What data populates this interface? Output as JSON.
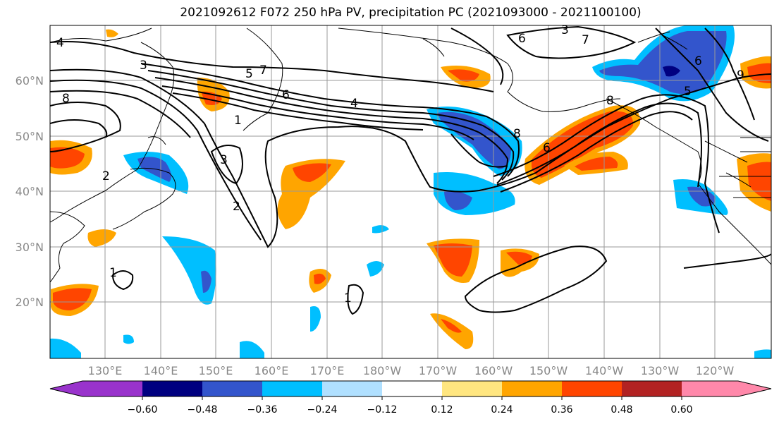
{
  "title": "2021092612 F072 250 hPa PV, precipitation PC (2021093000 - 2021100100)",
  "map": {
    "lat_labels": [
      "60°N",
      "50°N",
      "40°N",
      "30°N",
      "20°N"
    ],
    "lon_labels": [
      "130°E",
      "140°E",
      "150°E",
      "160°E",
      "170°E",
      "180°W",
      "170°W",
      "160°W",
      "150°W",
      "140°W",
      "130°W",
      "120°W"
    ],
    "contour_labels": [
      "4",
      "3",
      "8",
      "5",
      "6",
      "7",
      "1",
      "2",
      "4",
      "8",
      "6",
      "7",
      "3",
      "6",
      "8",
      "9",
      "5",
      "2",
      "3",
      "1",
      "1",
      "6"
    ]
  },
  "colorbar": {
    "tick_labels": [
      "−0.60",
      "−0.48",
      "−0.36",
      "−0.24",
      "−0.12",
      "0.12",
      "0.24",
      "0.36",
      "0.48",
      "0.60"
    ],
    "colors": [
      "#9933cc",
      "#000080",
      "#3355cc",
      "#00bfff",
      "#b0e0ff",
      "#ffffff",
      "#ffe680",
      "#ffa500",
      "#ff4500",
      "#b22222",
      "#ff88aa"
    ]
  },
  "colors": {
    "land_line": "#000000",
    "grid": "#999999"
  }
}
